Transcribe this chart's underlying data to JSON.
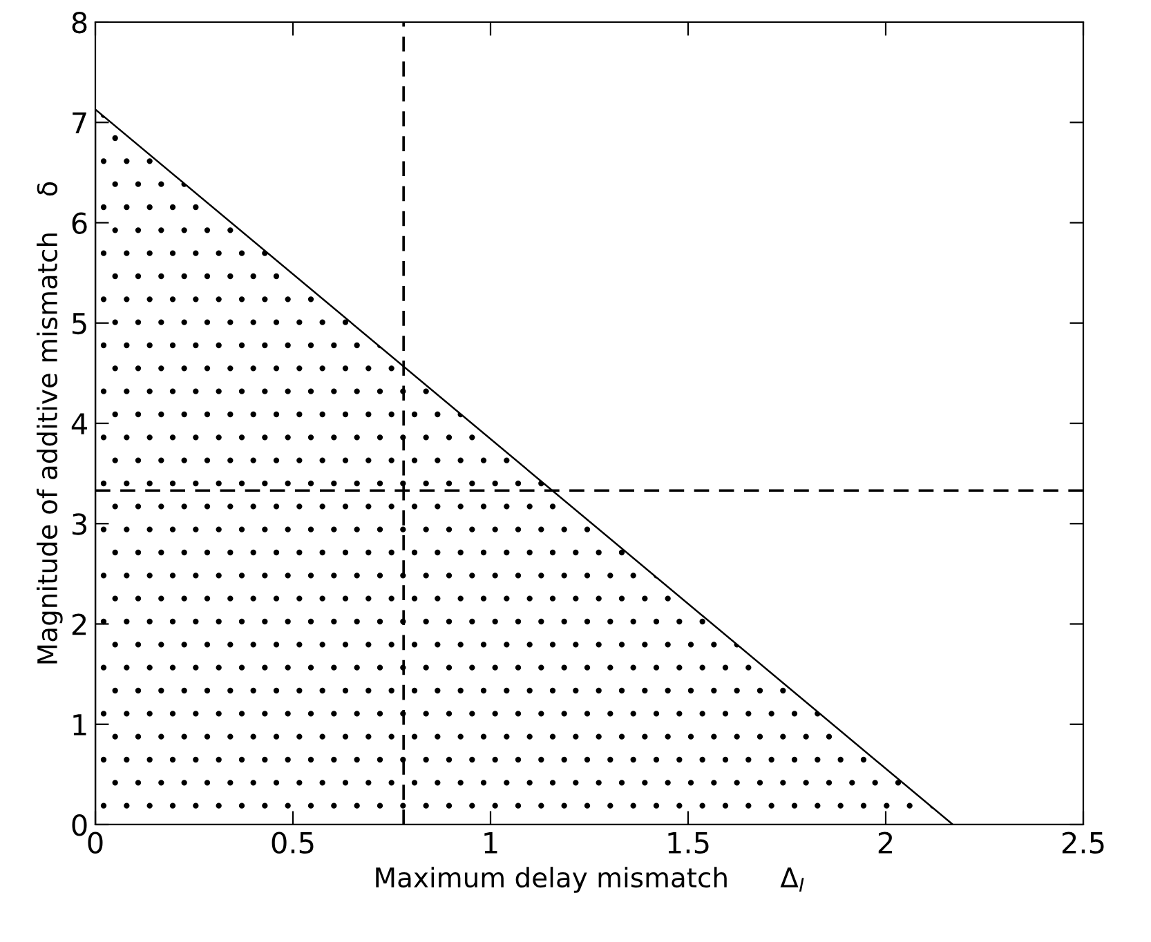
{
  "chart_data": {
    "type": "area",
    "xlabel": "Maximum delay mismatch      Δ$_{I}$",
    "ylabel": "Magnitude of additive mismatch    δ",
    "x": [
      0,
      2.17,
      2.5
    ],
    "series": [
      {
        "color": "#000000",
        "values": [
          7.13,
          0,
          0
        ]
      }
    ],
    "xlim": [
      0,
      2.5
    ],
    "xticks": [
      0,
      0.5,
      1,
      1.5,
      2,
      2.5
    ],
    "ylim": [
      0,
      8
    ],
    "yticks": [
      0,
      1,
      2,
      3,
      4,
      5,
      6,
      7,
      8
    ],
    "grid": false,
    "legend": false,
    "ref_lines": [
      {
        "axis": "x",
        "value": 0.78,
        "color": "#000000",
        "line_style": "dashed"
      },
      {
        "axis": "y",
        "value": 3.33,
        "color": "#000000",
        "line_style": "dashed"
      }
    ]
  }
}
